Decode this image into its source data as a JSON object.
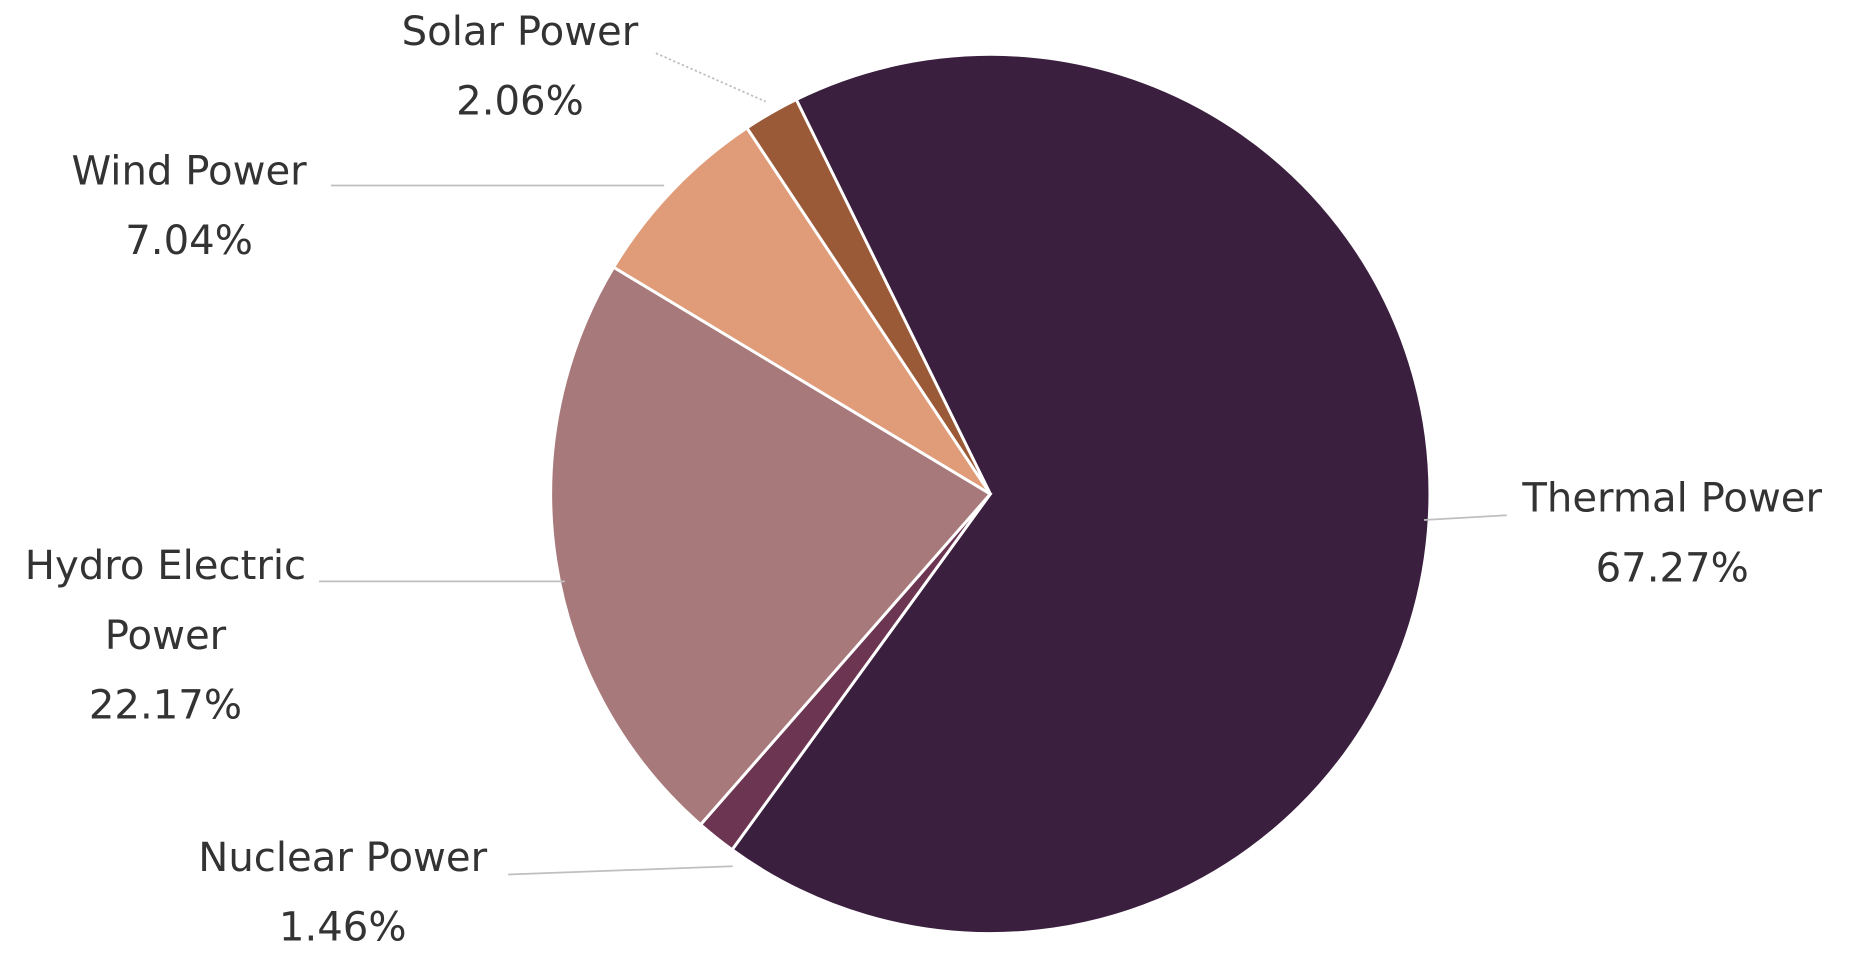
{
  "chart_data": {
    "type": "pie",
    "categories": [
      "Thermal Power",
      "Nuclear Power",
      "Hydro Electric Power",
      "Wind Power",
      "Solar Power"
    ],
    "values": [
      67.27,
      1.46,
      22.17,
      7.04,
      2.06
    ],
    "value_labels": [
      "67.27%",
      "1.46%",
      "22.17%",
      "7.04%",
      "2.06%"
    ],
    "colors": [
      "#3a1f3e",
      "#6c3552",
      "#a8797b",
      "#e09b78",
      "#9a5937"
    ]
  }
}
